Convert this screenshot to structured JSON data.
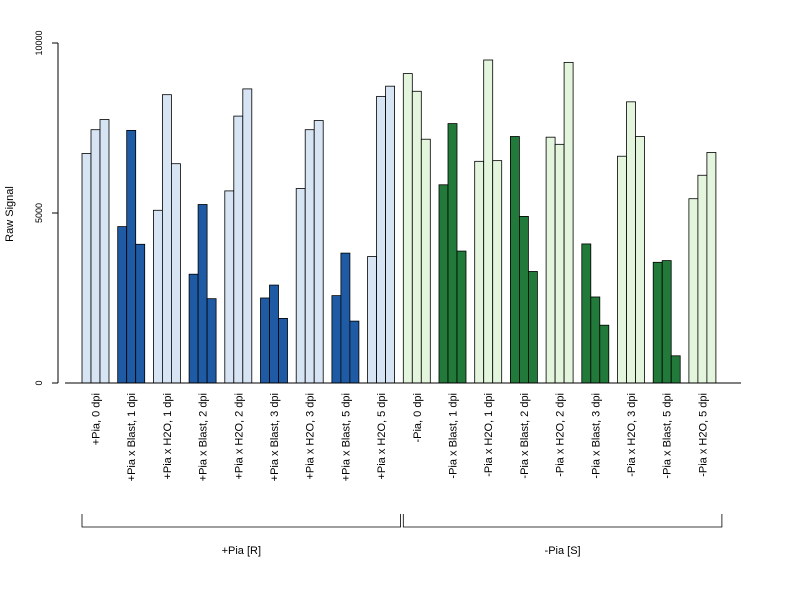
{
  "chart_data": {
    "type": "bar",
    "ylabel": "Raw Signal",
    "ylim": [
      0,
      10000
    ],
    "yticks": [
      0,
      5000,
      10000
    ],
    "bars_per_category": 3,
    "categories": [
      "+Pia, 0 dpi",
      "+Pia x Blast, 1 dpi",
      "+Pia x H2O, 1 dpi",
      "+Pia x Blast, 2 dpi",
      "+Pia x H2O, 2 dpi",
      "+Pia x Blast, 3 dpi",
      "+Pia x H2O, 3 dpi",
      "+Pia x Blast, 5 dpi",
      "+Pia x H2O, 5 dpi",
      "-Pia, 0 dpi",
      "-Pia x Blast, 1 dpi",
      "-Pia x H2O, 1 dpi",
      "-Pia x Blast, 2 dpi",
      "-Pia x H2O, 2 dpi",
      "-Pia x Blast, 3 dpi",
      "-Pia x H2O, 3 dpi",
      "-Pia x Blast, 5 dpi",
      "-Pia x H2O, 5 dpi"
    ],
    "values": [
      [
        6750,
        7450,
        7750
      ],
      [
        4600,
        7430,
        4080
      ],
      [
        5080,
        8480,
        6450
      ],
      [
        3200,
        5250,
        2480
      ],
      [
        5650,
        7850,
        8650
      ],
      [
        2500,
        2880,
        1900
      ],
      [
        5720,
        7450,
        7720
      ],
      [
        2570,
        3820,
        1820
      ],
      [
        3720,
        8430,
        8730
      ],
      [
        9100,
        8580,
        7170
      ],
      [
        5830,
        7630,
        3880
      ],
      [
        6520,
        9500,
        6540
      ],
      [
        7250,
        4900,
        3280
      ],
      [
        7230,
        7020,
        9430
      ],
      [
        4090,
        2530,
        1700
      ],
      [
        6670,
        8270,
        7250
      ],
      [
        3550,
        3600,
        800
      ],
      [
        5420,
        6110,
        6780
      ]
    ],
    "bar_colors": [
      "#d6e4f4",
      "#1f5ba5",
      "#d6e4f4",
      "#1f5ba5",
      "#d6e4f4",
      "#1f5ba5",
      "#d6e4f4",
      "#1f5ba5",
      "#d6e4f4",
      "#e3f5dd",
      "#217a3a",
      "#e3f5dd",
      "#217a3a",
      "#e3f5dd",
      "#217a3a",
      "#e3f5dd",
      "#217a3a",
      "#e3f5dd"
    ],
    "groups": [
      {
        "label": "+Pia [R]",
        "first": 0,
        "last": 8
      },
      {
        "label": "-Pia [S]",
        "first": 9,
        "last": 17
      }
    ]
  }
}
